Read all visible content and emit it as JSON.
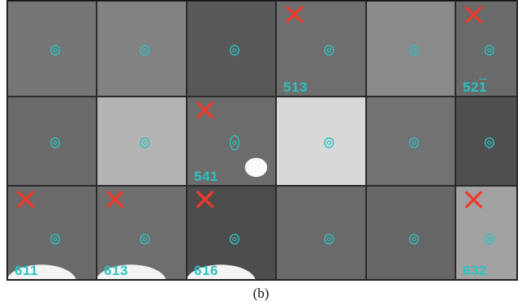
{
  "caption": "(b)",
  "accent": {
    "mark": "#2bc2c2",
    "reject": "#f03a2b"
  },
  "panels": [
    {
      "id": "r1c1",
      "shade": "#767676",
      "cross": false,
      "label": "",
      "blob": "none"
    },
    {
      "id": "r1c2",
      "shade": "#828282",
      "cross": false,
      "label": "",
      "blob": "none"
    },
    {
      "id": "r1c3",
      "shade": "#585858",
      "cross": false,
      "label": "",
      "blob": "none"
    },
    {
      "id": "r1c4",
      "shade": "#6e6e6e",
      "cross": true,
      "label": "513",
      "label_over": "",
      "blob": "none"
    },
    {
      "id": "r1c5",
      "shade": "#8a8a8a",
      "cross": false,
      "label": "",
      "blob": "none"
    },
    {
      "id": "r1c6",
      "shade": "#6a6a6a",
      "cross": true,
      "label": "52",
      "label_over": "1",
      "blob": "none"
    },
    {
      "id": "r2c1",
      "shade": "#6a6a6a",
      "cross": false,
      "label": "",
      "blob": "none"
    },
    {
      "id": "r2c2",
      "shade": "#b4b4b4",
      "cross": false,
      "label": "",
      "blob": "none"
    },
    {
      "id": "r2c3",
      "shade": "#6c6c6c",
      "cross": true,
      "label": "541",
      "label_over": "",
      "blob": "spot"
    },
    {
      "id": "r2c4",
      "shade": "#d8d8d8",
      "cross": false,
      "label": "",
      "blob": "none"
    },
    {
      "id": "r2c5",
      "shade": "#727272",
      "cross": false,
      "label": "",
      "blob": "none"
    },
    {
      "id": "r2c6",
      "shade": "#4f4f4f",
      "cross": false,
      "label": "",
      "blob": "none"
    },
    {
      "id": "r3c1",
      "shade": "#6a6a6a",
      "cross": true,
      "label": "611",
      "label_over": "",
      "blob": "bottom"
    },
    {
      "id": "r3c2",
      "shade": "#6e6e6e",
      "cross": true,
      "label": "613",
      "label_over": "",
      "blob": "bottom"
    },
    {
      "id": "r3c3",
      "shade": "#4c4c4c",
      "cross": true,
      "label": "616",
      "label_over": "",
      "blob": "bottom"
    },
    {
      "id": "r3c4",
      "shade": "#6a6a6a",
      "cross": false,
      "label": "",
      "blob": "none"
    },
    {
      "id": "r3c5",
      "shade": "#666666",
      "cross": false,
      "label": "",
      "blob": "none"
    },
    {
      "id": "r3c6",
      "shade": "#a2a2a2",
      "cross": true,
      "label": "632",
      "label_over": "",
      "blob": "none"
    }
  ]
}
